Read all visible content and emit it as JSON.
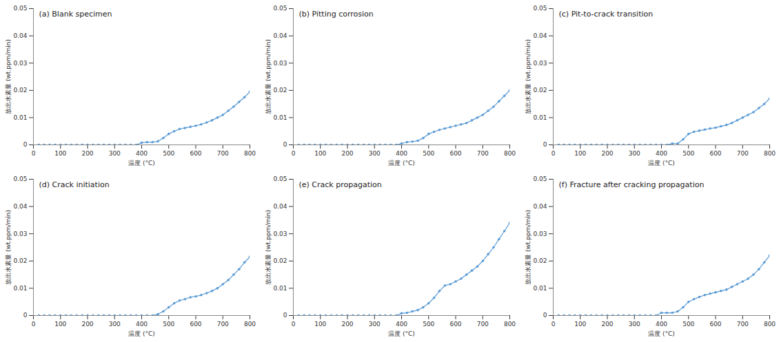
{
  "chart_data": [
    {
      "type": "line",
      "title": "(a) Blank specimen",
      "x_label": "温度 (°C)",
      "y_label": "放出水素量 (wt.ppm/min)",
      "x": [
        20,
        40,
        60,
        80,
        100,
        120,
        140,
        160,
        180,
        200,
        220,
        240,
        260,
        280,
        300,
        320,
        340,
        360,
        380,
        400,
        420,
        440,
        460,
        480,
        500,
        520,
        540,
        560,
        580,
        600,
        620,
        640,
        660,
        680,
        700,
        720,
        740,
        760,
        780,
        800
      ],
      "values": [
        0,
        0,
        0,
        0,
        0,
        0,
        0,
        0,
        0,
        0,
        0,
        0,
        0,
        0,
        0,
        0,
        0,
        0,
        0,
        0.0008,
        0.001,
        0.001,
        0.0013,
        0.0025,
        0.004,
        0.005,
        0.0058,
        0.0062,
        0.0066,
        0.007,
        0.0075,
        0.0082,
        0.009,
        0.01,
        0.011,
        0.0125,
        0.014,
        0.0158,
        0.0175,
        0.0195
      ],
      "color": "#5b9bd5",
      "marker": "circle",
      "grid": false,
      "xlim": [
        0,
        800
      ],
      "xticks": [
        0,
        100,
        200,
        300,
        400,
        500,
        600,
        700,
        800
      ],
      "ylim": [
        0,
        0.05
      ],
      "yticks": [
        0,
        0.01,
        0.02,
        0.03,
        0.04,
        0.05
      ]
    },
    {
      "type": "line",
      "title": "(b) Pitting corrosion",
      "x_label": "温度 (°C)",
      "y_label": "放出水素量 (wt.ppm/min)",
      "x": [
        20,
        40,
        60,
        80,
        100,
        120,
        140,
        160,
        180,
        200,
        220,
        240,
        260,
        280,
        300,
        320,
        340,
        360,
        380,
        400,
        420,
        440,
        460,
        480,
        500,
        520,
        540,
        560,
        580,
        600,
        620,
        640,
        660,
        680,
        700,
        720,
        740,
        760,
        780,
        800
      ],
      "values": [
        0,
        0,
        0,
        0,
        0,
        0,
        0,
        0,
        0,
        0,
        0,
        0,
        0,
        0,
        0,
        0,
        0,
        0,
        0,
        0.0005,
        0.001,
        0.0012,
        0.0015,
        0.0025,
        0.004,
        0.0048,
        0.0055,
        0.006,
        0.0065,
        0.007,
        0.0075,
        0.008,
        0.009,
        0.01,
        0.011,
        0.0125,
        0.014,
        0.016,
        0.018,
        0.02
      ],
      "color": "#5b9bd5",
      "marker": "circle",
      "grid": false,
      "xlim": [
        0,
        800
      ],
      "xticks": [
        0,
        100,
        200,
        300,
        400,
        500,
        600,
        700,
        800
      ],
      "ylim": [
        0,
        0.05
      ],
      "yticks": [
        0,
        0.01,
        0.02,
        0.03,
        0.04,
        0.05
      ]
    },
    {
      "type": "line",
      "title": "(c) Pit-to-crack transition",
      "x_label": "温度 (°C)",
      "y_label": "放出水素量 (wt.ppm/min)",
      "x": [
        20,
        40,
        60,
        80,
        100,
        120,
        140,
        160,
        180,
        200,
        220,
        240,
        260,
        280,
        300,
        320,
        340,
        360,
        380,
        400,
        420,
        440,
        460,
        480,
        500,
        520,
        540,
        560,
        580,
        600,
        620,
        640,
        660,
        680,
        700,
        720,
        740,
        760,
        780,
        800
      ],
      "values": [
        0,
        0,
        0,
        0,
        0,
        0,
        0,
        0,
        0,
        0,
        0,
        0,
        0,
        0,
        0,
        0,
        0,
        0,
        0,
        0,
        0,
        0.0005,
        0.0005,
        0.002,
        0.004,
        0.0048,
        0.0052,
        0.0056,
        0.006,
        0.0063,
        0.0068,
        0.0073,
        0.008,
        0.009,
        0.01,
        0.011,
        0.012,
        0.0135,
        0.015,
        0.017
      ],
      "color": "#5b9bd5",
      "marker": "circle",
      "grid": false,
      "xlim": [
        0,
        800
      ],
      "xticks": [
        0,
        100,
        200,
        300,
        400,
        500,
        600,
        700,
        800
      ],
      "ylim": [
        0,
        0.05
      ],
      "yticks": [
        0,
        0.01,
        0.02,
        0.03,
        0.04,
        0.05
      ]
    },
    {
      "type": "line",
      "title": "(d) Crack initiation",
      "x_label": "温度 (°C)",
      "y_label": "放出水素量 (wt.ppm/min)",
      "x": [
        20,
        40,
        60,
        80,
        100,
        120,
        140,
        160,
        180,
        200,
        220,
        240,
        260,
        280,
        300,
        320,
        340,
        360,
        380,
        400,
        420,
        440,
        460,
        480,
        500,
        520,
        540,
        560,
        580,
        600,
        620,
        640,
        660,
        680,
        700,
        720,
        740,
        760,
        780,
        800
      ],
      "values": [
        0,
        0,
        0,
        0,
        0,
        0,
        0,
        0,
        0,
        0,
        0,
        0,
        0,
        0,
        0,
        0,
        0,
        0,
        0,
        0,
        0,
        0,
        0.0005,
        0.0015,
        0.003,
        0.0045,
        0.0055,
        0.006,
        0.0067,
        0.007,
        0.0075,
        0.0082,
        0.009,
        0.01,
        0.0115,
        0.013,
        0.015,
        0.017,
        0.0195,
        0.0215
      ],
      "color": "#5b9bd5",
      "marker": "circle",
      "grid": false,
      "xlim": [
        0,
        800
      ],
      "xticks": [
        0,
        100,
        200,
        300,
        400,
        500,
        600,
        700,
        800
      ],
      "ylim": [
        0,
        0.05
      ],
      "yticks": [
        0,
        0.01,
        0.02,
        0.03,
        0.04,
        0.05
      ]
    },
    {
      "type": "line",
      "title": "(e) Crack propagation",
      "x_label": "温度 (°C)",
      "y_label": "放出水素量 (wt.ppm/min)",
      "x": [
        20,
        40,
        60,
        80,
        100,
        120,
        140,
        160,
        180,
        200,
        220,
        240,
        260,
        280,
        300,
        320,
        340,
        360,
        380,
        400,
        420,
        440,
        460,
        480,
        500,
        520,
        540,
        560,
        580,
        600,
        620,
        640,
        660,
        680,
        700,
        720,
        740,
        760,
        780,
        800
      ],
      "values": [
        0,
        0,
        0,
        0,
        0,
        0,
        0,
        0,
        0,
        0,
        0,
        0,
        0,
        0,
        0,
        0,
        0,
        0,
        0,
        0.0008,
        0.001,
        0.0015,
        0.002,
        0.003,
        0.0045,
        0.0065,
        0.009,
        0.011,
        0.0115,
        0.0125,
        0.0135,
        0.015,
        0.0165,
        0.018,
        0.02,
        0.0225,
        0.025,
        0.028,
        0.031,
        0.034
      ],
      "color": "#5b9bd5",
      "marker": "circle",
      "grid": false,
      "xlim": [
        0,
        800
      ],
      "xticks": [
        0,
        100,
        200,
        300,
        400,
        500,
        600,
        700,
        800
      ],
      "ylim": [
        0,
        0.05
      ],
      "yticks": [
        0,
        0.01,
        0.02,
        0.03,
        0.04,
        0.05
      ]
    },
    {
      "type": "line",
      "title": "(f) Fracture after cracking propagation",
      "x_label": "温度 (°C)",
      "y_label": "放出水素量 (wt.ppm/min)",
      "x": [
        20,
        40,
        60,
        80,
        100,
        120,
        140,
        160,
        180,
        200,
        220,
        240,
        260,
        280,
        300,
        320,
        340,
        360,
        380,
        400,
        420,
        440,
        460,
        480,
        500,
        520,
        540,
        560,
        580,
        600,
        620,
        640,
        660,
        680,
        700,
        720,
        740,
        760,
        780,
        800
      ],
      "values": [
        0,
        0,
        0,
        0,
        0,
        0,
        0,
        0,
        0,
        0,
        0,
        0,
        0,
        0,
        0,
        0,
        0,
        0,
        0,
        0.001,
        0.001,
        0.001,
        0.0015,
        0.003,
        0.005,
        0.006,
        0.0068,
        0.0075,
        0.008,
        0.0085,
        0.009,
        0.0095,
        0.0105,
        0.0115,
        0.0125,
        0.0135,
        0.015,
        0.017,
        0.0195,
        0.022
      ],
      "color": "#5b9bd5",
      "marker": "circle",
      "grid": false,
      "xlim": [
        0,
        800
      ],
      "xticks": [
        0,
        100,
        200,
        300,
        400,
        500,
        600,
        700,
        800
      ],
      "ylim": [
        0,
        0.05
      ],
      "yticks": [
        0,
        0.01,
        0.02,
        0.03,
        0.04,
        0.05
      ]
    }
  ]
}
